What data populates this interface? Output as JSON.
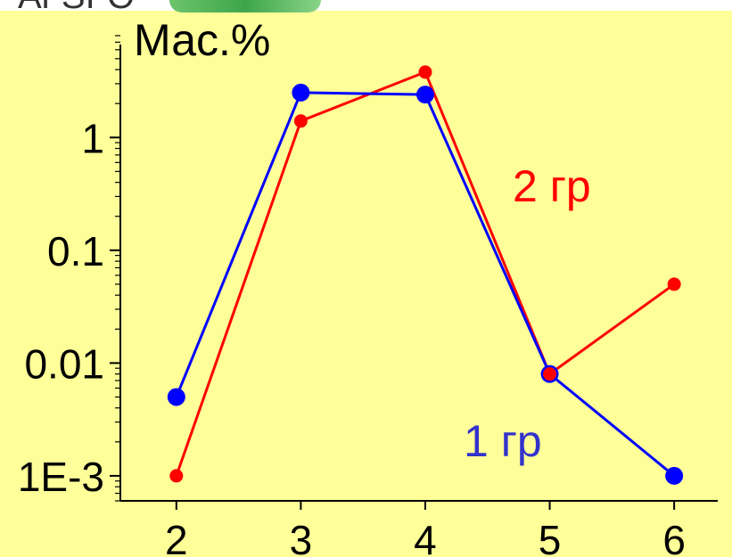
{
  "header": {
    "cropped_text": "Al-SI-O"
  },
  "chart_data": {
    "type": "line",
    "title": "",
    "ylabel": "Мас.%",
    "xlabel": "",
    "x": [
      2,
      3,
      4,
      5,
      6
    ],
    "yscale": "log",
    "ylim": [
      0.0006,
      8
    ],
    "xlim": [
      1.55,
      6.35
    ],
    "xticks": [
      "2",
      "3",
      "4",
      "5",
      "6"
    ],
    "yticks": [
      {
        "value": 0.001,
        "label": "1E-3"
      },
      {
        "value": 0.01,
        "label": "0.01"
      },
      {
        "value": 0.1,
        "label": "0.1"
      },
      {
        "value": 1,
        "label": "1"
      }
    ],
    "grid": false,
    "legend": "inline-labels",
    "series": [
      {
        "name": "1 гр",
        "color": "#0000ff",
        "values": [
          0.005,
          2.5,
          2.4,
          0.008,
          0.001
        ]
      },
      {
        "name": "2 гр",
        "color": "#ff0000",
        "values": [
          0.001,
          1.4,
          3.8,
          0.008,
          0.05
        ]
      }
    ]
  }
}
